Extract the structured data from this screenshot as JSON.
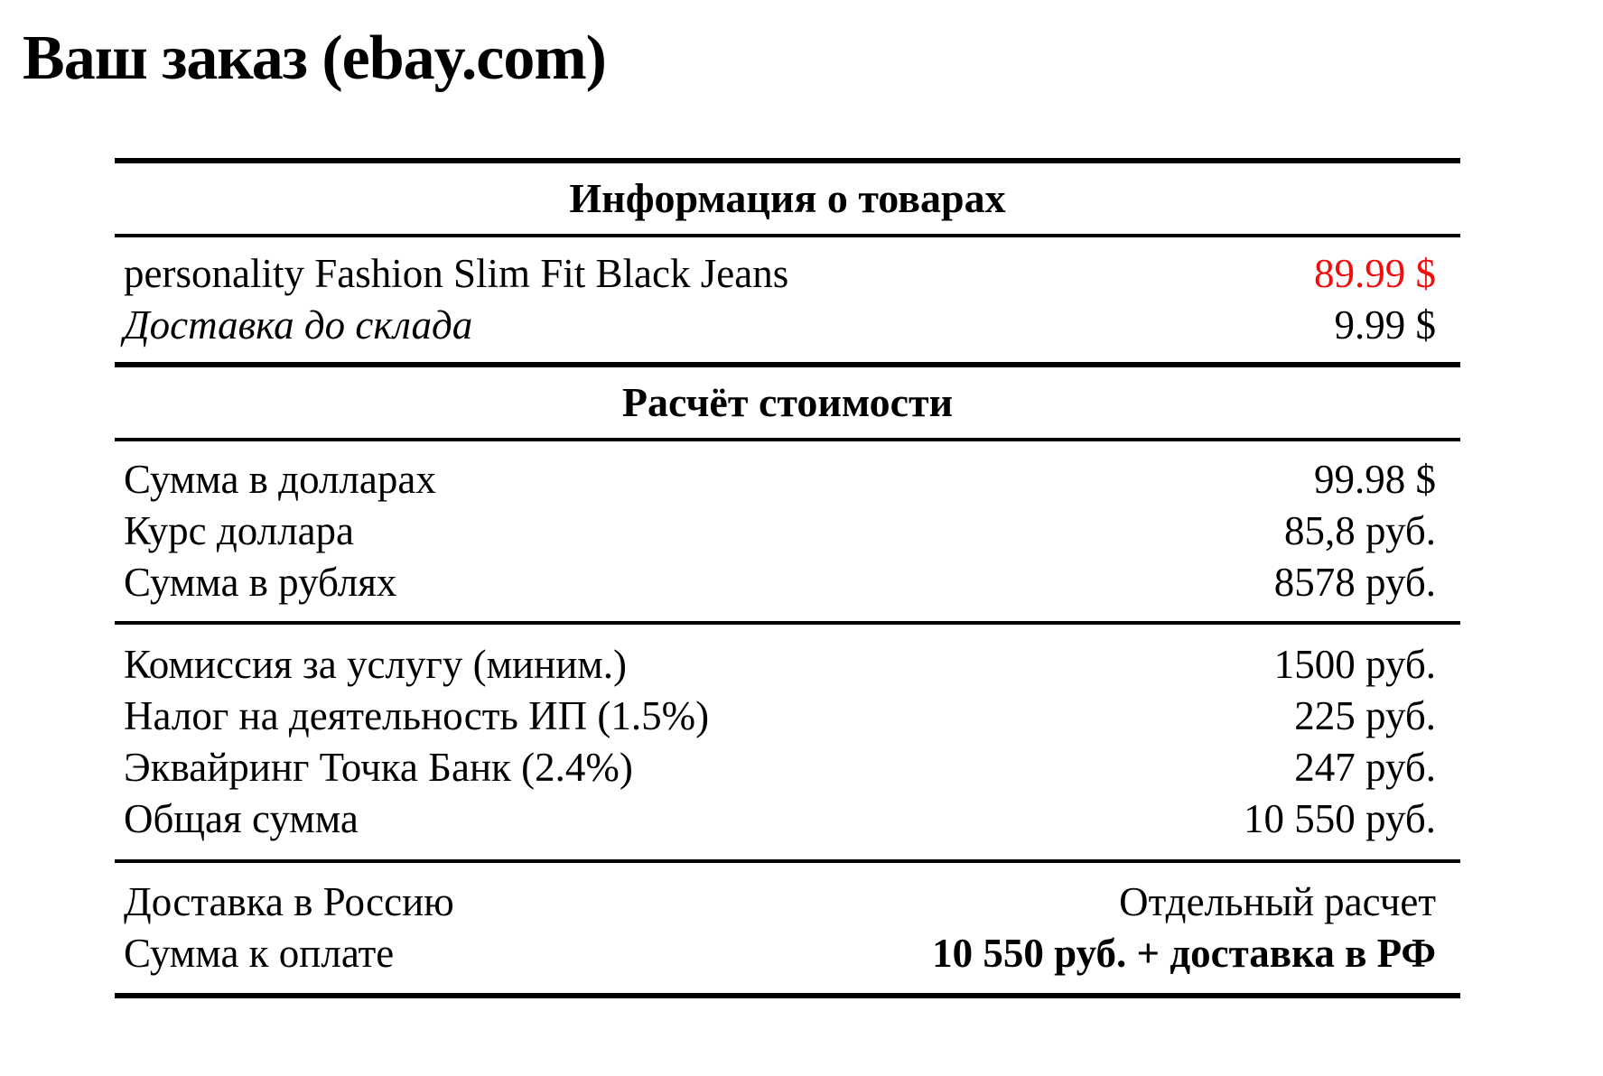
{
  "page": {
    "title": "Ваш заказ (ebay.com)"
  },
  "colors": {
    "highlight_price": "#f20d0d",
    "text": "#000000",
    "background": "#ffffff"
  },
  "table": {
    "section1_header": "Информация о товарах",
    "section2_header": "Расчёт стоимости"
  },
  "rows": {
    "jeans": {
      "label": "personality Fashion Slim Fit Black Jeans",
      "value": "89.99 $"
    },
    "warehouse_delivery": {
      "label": "Доставка до склада",
      "value": "9.99 $"
    },
    "usd_total": {
      "label": "Сумма в долларах",
      "value": "99.98 $"
    },
    "usd_rate": {
      "label": "Курс доллара",
      "value": "85,8 руб."
    },
    "rub_total": {
      "label": "Сумма в рублях",
      "value": "8578 руб."
    },
    "service_fee": {
      "label": "Комиссия за услугу (миним.)",
      "value": "1500 руб."
    },
    "tax": {
      "label": "Налог на деятельность ИП (1.5%)",
      "value": "225 руб."
    },
    "acquiring": {
      "label": "Эквайринг Точка Банк (2.4%)",
      "value": "247 руб."
    },
    "grand_total": {
      "label": "Общая сумма",
      "value": "10 550 руб."
    },
    "russia_delivery": {
      "label": "Доставка в Россию",
      "value": "Отдельный расчет"
    },
    "payable": {
      "label": "Сумма к оплате",
      "value": "10 550 руб. + доставка в РФ"
    }
  }
}
